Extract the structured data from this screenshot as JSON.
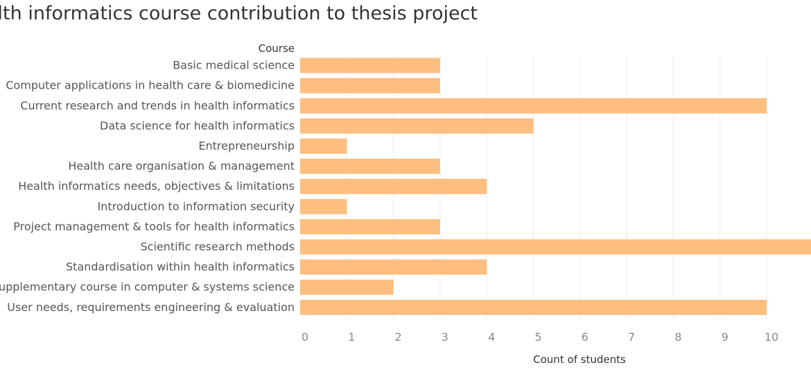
{
  "chart_data": {
    "type": "bar",
    "orientation": "horizontal",
    "title": "alth informatics course contribution to thesis project",
    "row_header": "Course",
    "xlabel": "Count of students",
    "categories": [
      "Basic medical science",
      "Computer applications in health care & biomedicine",
      "Current research and trends in health informatics",
      "Data science for health informatics",
      "Entrepreneurship",
      "Health care organisation & management",
      "Health informatics needs, objectives & limitations",
      "Introduction to information security",
      "Project management & tools for health informatics",
      "Scientific research methods",
      "Standardisation within health informatics",
      "upplementary course in computer & systems science",
      "User needs, requirements engineering & evaluation"
    ],
    "values": [
      3,
      3,
      10,
      5,
      1,
      3,
      4,
      1,
      3,
      11,
      4,
      2,
      10
    ],
    "xticks": [
      "0",
      "1",
      "2",
      "3",
      "4",
      "5",
      "6",
      "7",
      "8",
      "9",
      "10",
      "1"
    ],
    "xlim": [
      0,
      11
    ],
    "grid": true,
    "bar_color": "#FDBE80"
  }
}
